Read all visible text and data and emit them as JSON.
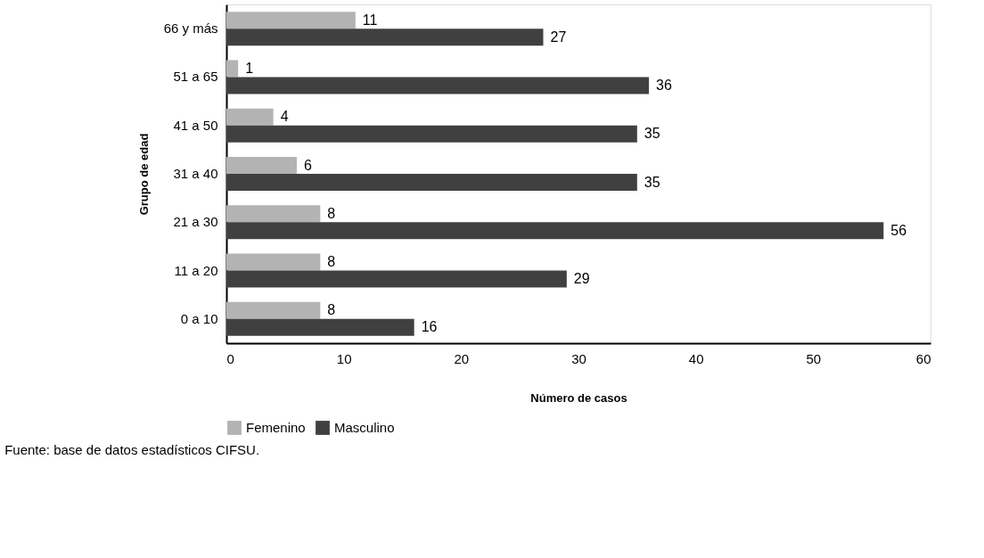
{
  "chart_data": {
    "type": "bar",
    "orientation": "horizontal",
    "xlabel": "Número de casos",
    "ylabel": "Grupo de edad",
    "categories": [
      "66 y más",
      "51 a 65",
      "41 a 50",
      "31 a 40",
      "21 a 30",
      "11 a 20",
      "0 a 10"
    ],
    "series": [
      {
        "name": "Femenino",
        "color": "#b3b3b3",
        "values": [
          11,
          1,
          4,
          6,
          8,
          8,
          8
        ]
      },
      {
        "name": "Masculino",
        "color": "#404040",
        "values": [
          27,
          36,
          35,
          35,
          56,
          29,
          16
        ]
      }
    ],
    "xlim": [
      0,
      60
    ],
    "xticks": [
      0,
      10,
      20,
      30,
      40,
      50,
      60
    ],
    "grid": false,
    "legend": "bottom",
    "data_labels": true,
    "annotations": [
      "Fuente: base de datos estadísticos CIFSU."
    ]
  }
}
